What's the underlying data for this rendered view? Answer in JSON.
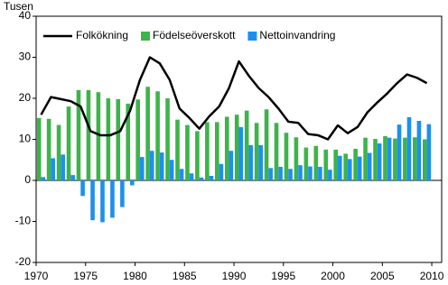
{
  "chart_data": {
    "type": "bar-line",
    "y_label": "Tusen",
    "x": [
      1971,
      1972,
      1973,
      1974,
      1975,
      1976,
      1977,
      1978,
      1979,
      1980,
      1981,
      1982,
      1983,
      1984,
      1985,
      1986,
      1987,
      1988,
      1989,
      1990,
      1991,
      1992,
      1993,
      1994,
      1995,
      1996,
      1997,
      1998,
      1999,
      2000,
      2001,
      2002,
      2003,
      2004,
      2005,
      2006,
      2007,
      2008,
      2009,
      2010
    ],
    "series": [
      {
        "name": "Folkökning",
        "type": "line",
        "color": "#000000",
        "values": [
          16,
          20.3,
          19.8,
          19.3,
          18,
          12,
          11,
          11,
          12,
          17,
          24.5,
          30,
          28.5,
          24.5,
          17.5,
          15.2,
          12.6,
          15.6,
          18,
          22.5,
          29,
          25.5,
          22.5,
          20.3,
          17.5,
          14.3,
          14,
          11.3,
          11,
          10,
          13.4,
          11.5,
          13,
          16.6,
          19,
          21.2,
          23.7,
          25.8,
          25,
          23.7
        ]
      },
      {
        "name": "Födelseöverskott",
        "type": "bar",
        "color": "#3cb44a",
        "values": [
          15.2,
          15,
          13.5,
          18,
          22,
          22,
          21.5,
          20,
          19.8,
          18.7,
          19.7,
          22.8,
          21.7,
          20,
          14.8,
          13.5,
          12,
          14.2,
          14.2,
          15.5,
          16,
          17,
          14,
          17.3,
          14,
          11.6,
          10.5,
          8,
          8.4,
          7.5,
          7.5,
          6.5,
          7.7,
          10.4,
          10.1,
          10.8,
          10.2,
          10.4,
          10.5,
          10
        ]
      },
      {
        "name": "Nettoinvandring",
        "type": "bar",
        "color": "#1e8ff0",
        "values": [
          0.8,
          5.4,
          6.3,
          1.3,
          -3.8,
          -9.7,
          -10.2,
          -9.1,
          -6.5,
          -1.2,
          5.7,
          7.2,
          6.8,
          5,
          2.8,
          1.7,
          0.7,
          1.1,
          4,
          7.2,
          13,
          8.6,
          8.6,
          3,
          3.3,
          2.8,
          3.7,
          3.4,
          3.3,
          2.6,
          6,
          5.2,
          5.8,
          6.7,
          9,
          10.4,
          13.6,
          15.4,
          14.5,
          13.7
        ]
      }
    ],
    "xlim": [
      1970,
      2011
    ],
    "xticks": [
      1970,
      1975,
      1980,
      1985,
      1990,
      1995,
      2000,
      2005,
      2010
    ],
    "ylim": [
      -20,
      40
    ],
    "yticks": [
      -20,
      -10,
      0,
      10,
      20,
      30,
      40
    ],
    "grid": false,
    "legend": "top"
  }
}
